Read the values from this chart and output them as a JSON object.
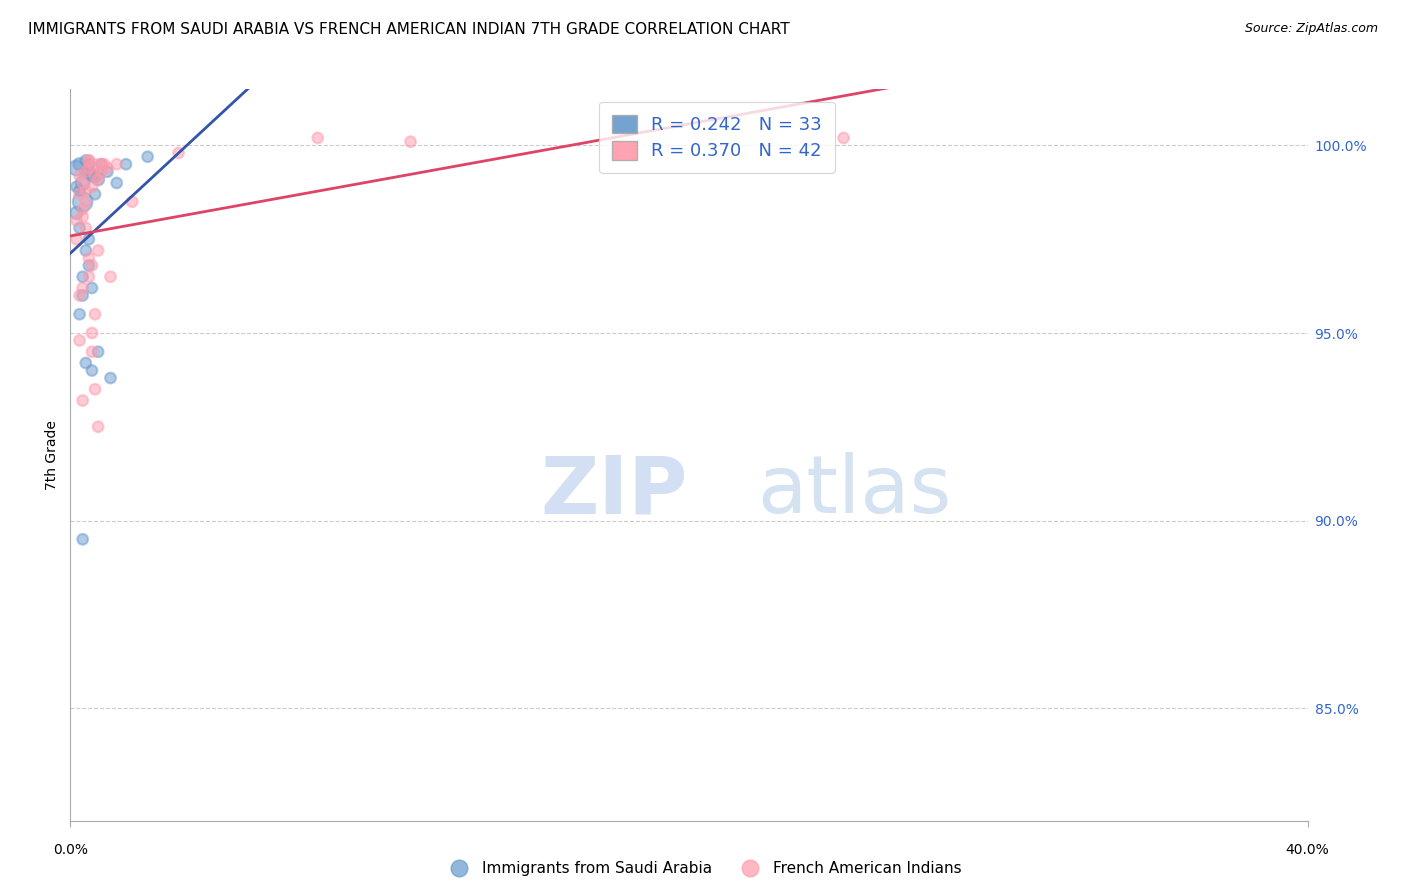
{
  "title": "IMMIGRANTS FROM SAUDI ARABIA VS FRENCH AMERICAN INDIAN 7TH GRADE CORRELATION CHART",
  "source": "Source: ZipAtlas.com",
  "ylabel": "7th Grade",
  "ylabel_right_ticks": [
    100.0,
    95.0,
    90.0,
    85.0
  ],
  "ylabel_right_labels": [
    "100.0%",
    "95.0%",
    "90.0%",
    "85.0%"
  ],
  "xmin": 0.0,
  "xmax": 40.0,
  "ymin": 82.0,
  "ymax": 101.5,
  "blue_color": "#6699CC",
  "pink_color": "#FF99AA",
  "blue_line_color": "#3355AA",
  "pink_line_color": "#DD4466",
  "legend_R_blue": "0.242",
  "legend_N_blue": "33",
  "legend_R_pink": "0.370",
  "legend_N_pink": "42",
  "legend_text_color": "#3366CC",
  "blue_scatter": {
    "x": [
      0.3,
      0.5,
      0.8,
      0.4,
      0.6,
      0.9,
      1.2,
      0.2,
      0.7,
      1.5,
      0.3,
      0.4,
      0.5,
      0.6,
      0.8,
      1.0,
      0.3,
      0.5,
      0.4,
      0.7,
      1.8,
      0.2,
      0.3,
      0.6,
      0.9,
      0.4,
      1.3,
      0.5,
      0.7,
      2.5,
      0.2,
      0.4,
      0.6
    ],
    "y": [
      99.5,
      99.3,
      99.2,
      99.0,
      99.5,
      99.1,
      99.3,
      99.4,
      99.2,
      99.0,
      98.8,
      98.5,
      99.6,
      99.3,
      98.7,
      99.5,
      97.8,
      97.2,
      96.5,
      96.2,
      99.5,
      98.2,
      95.5,
      96.8,
      94.5,
      96.0,
      93.8,
      94.2,
      94.0,
      99.7,
      98.9,
      89.5,
      97.5
    ],
    "sizes": [
      80,
      60,
      80,
      100,
      60,
      80,
      60,
      120,
      80,
      60,
      60,
      200,
      60,
      80,
      60,
      60,
      60,
      60,
      60,
      60,
      60,
      80,
      60,
      60,
      60,
      60,
      60,
      60,
      60,
      60,
      60,
      60,
      60
    ]
  },
  "pink_scatter": {
    "x": [
      0.5,
      0.8,
      1.2,
      0.3,
      0.6,
      0.9,
      0.4,
      0.7,
      1.0,
      1.5,
      0.3,
      0.5,
      0.8,
      0.4,
      0.6,
      1.1,
      0.2,
      0.7,
      0.9,
      1.3,
      0.4,
      0.6,
      0.8,
      0.2,
      0.5,
      0.3,
      0.7,
      1.0,
      0.4,
      0.6,
      8.0,
      11.0,
      0.3,
      0.5,
      3.5,
      0.8,
      0.4,
      0.6,
      0.9,
      25.0,
      2.0,
      0.7
    ],
    "y": [
      99.3,
      99.5,
      99.4,
      99.2,
      99.6,
      99.1,
      99.0,
      98.9,
      99.3,
      99.5,
      98.7,
      98.5,
      99.2,
      98.3,
      99.4,
      99.5,
      97.5,
      96.8,
      97.2,
      96.5,
      98.1,
      97.0,
      95.5,
      98.0,
      97.8,
      94.8,
      95.0,
      99.5,
      96.2,
      96.5,
      100.2,
      100.1,
      96.0,
      98.8,
      99.8,
      93.5,
      93.2,
      99.6,
      92.5,
      100.2,
      98.5,
      94.5
    ],
    "sizes": [
      60,
      60,
      60,
      60,
      60,
      60,
      60,
      60,
      60,
      60,
      60,
      60,
      60,
      60,
      60,
      60,
      60,
      60,
      60,
      60,
      60,
      60,
      60,
      60,
      60,
      60,
      60,
      60,
      60,
      60,
      60,
      60,
      60,
      60,
      60,
      60,
      60,
      60,
      60,
      60,
      60,
      60
    ]
  }
}
